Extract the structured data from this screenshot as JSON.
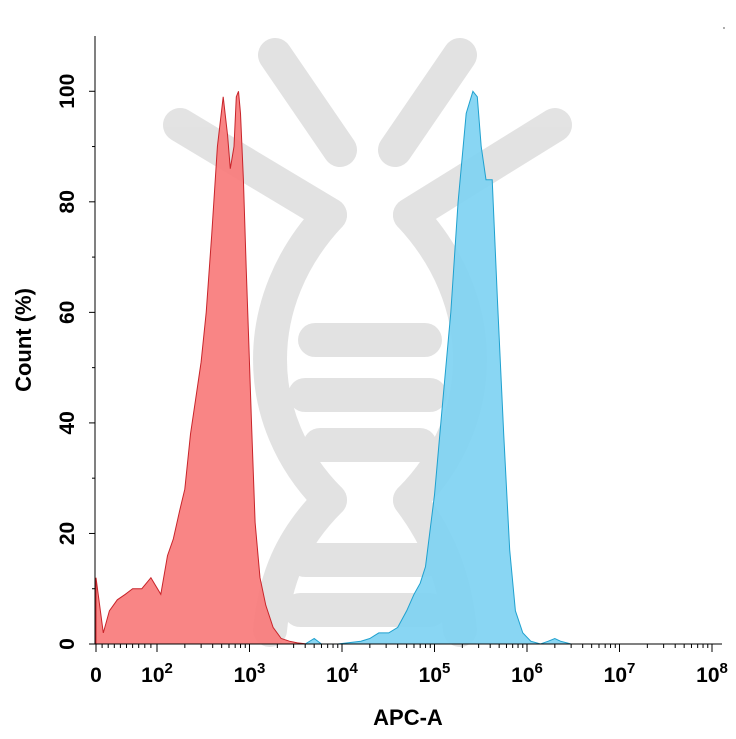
{
  "chart_data": {
    "type": "area",
    "title": "",
    "xlabel": "APC-A",
    "ylabel": "Count (%)",
    "x_scale": "log",
    "xlim": [
      0,
      100000000
    ],
    "ylim": [
      0,
      110
    ],
    "grid": false,
    "legend": "none",
    "x_ticks": [
      {
        "value": 0,
        "base": "0",
        "exp": ""
      },
      {
        "value": 100,
        "base": "10",
        "exp": "2"
      },
      {
        "value": 1000,
        "base": "10",
        "exp": "3"
      },
      {
        "value": 10000,
        "base": "10",
        "exp": "4"
      },
      {
        "value": 100000,
        "base": "10",
        "exp": "5"
      },
      {
        "value": 1000000,
        "base": "10",
        "exp": "6"
      },
      {
        "value": 10000000,
        "base": "10",
        "exp": "7"
      },
      {
        "value": 100000000,
        "base": "10",
        "exp": "8"
      }
    ],
    "y_ticks": [
      0,
      20,
      40,
      60,
      80,
      100
    ],
    "series": [
      {
        "color": "#f87b7b",
        "stroke": "#c8242a",
        "x": [
          0,
          12,
          22,
          35,
          48,
          60,
          75,
          90,
          110,
          130,
          150,
          175,
          200,
          230,
          260,
          300,
          340,
          390,
          450,
          520,
          580,
          620,
          680,
          720,
          760,
          800,
          860,
          920,
          980,
          1050,
          1150,
          1300,
          1500,
          1800,
          2200,
          2700,
          3300,
          4200
        ],
        "y": [
          12,
          2,
          6,
          8,
          9,
          10,
          10,
          12,
          9,
          16,
          19,
          24,
          28,
          38,
          44,
          51,
          60,
          74,
          90,
          99,
          92,
          86,
          90,
          99,
          100,
          96,
          84,
          68,
          55,
          40,
          22,
          12,
          7,
          3,
          1,
          0.5,
          0.2,
          0
        ]
      },
      {
        "color": "#7fd2f2",
        "stroke": "#1fa1cf",
        "x": [
          4000,
          5000,
          6000,
          9000,
          16000,
          20000,
          25000,
          32000,
          40000,
          50000,
          60000,
          70000,
          80000,
          100000,
          120000,
          150000,
          180000,
          220000,
          260000,
          290000,
          320000,
          360000,
          420000,
          480000,
          560000,
          650000,
          750000,
          900000,
          1100000,
          1400000,
          1700000,
          2000000,
          2300000,
          3000000
        ],
        "y": [
          0,
          1,
          0,
          0,
          0.5,
          1,
          2,
          2,
          3,
          6,
          9,
          11,
          14,
          27,
          42,
          60,
          80,
          96,
          100,
          99,
          90,
          84,
          84,
          62,
          38,
          17,
          6,
          2,
          0.5,
          0,
          0.5,
          1,
          0.5,
          0
        ]
      }
    ]
  },
  "corner_mark": "ˈ"
}
